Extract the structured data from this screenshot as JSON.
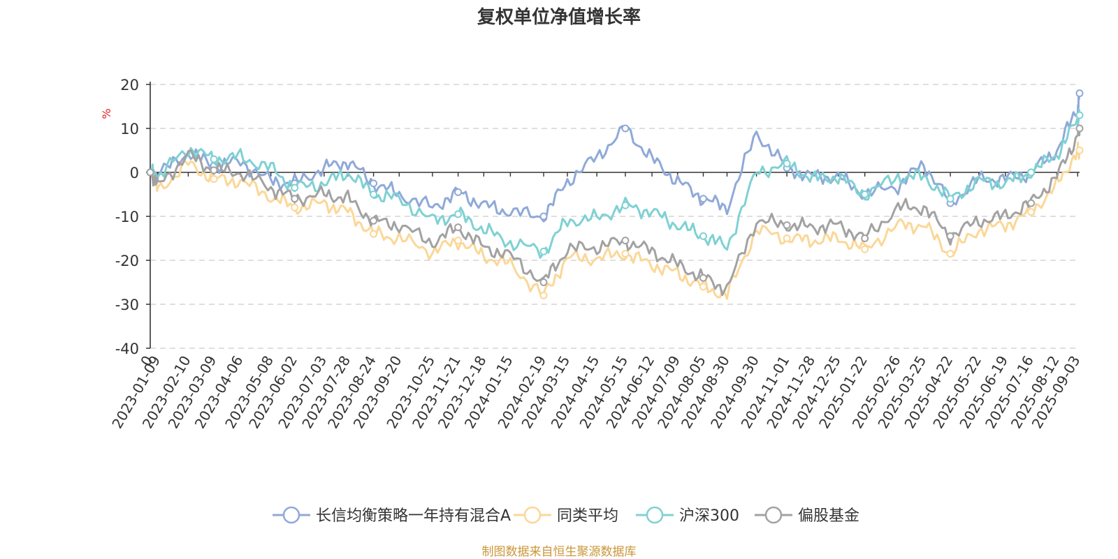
{
  "footer_note": "制图数据来自恒生聚源数据库",
  "chart_data": {
    "type": "line",
    "title": "复权单位净值增长率",
    "ylabel": "%",
    "ylim": [
      -40,
      20
    ],
    "yticks": [
      "20",
      "10",
      "0",
      "-10",
      "-20",
      "-30",
      "-40"
    ],
    "grid": true,
    "legend_position": "bottom",
    "x": [
      "2023-01-01",
      "2023-01-09",
      "2023-02-10",
      "2023-03-09",
      "2023-04-06",
      "2023-05-08",
      "2023-06-02",
      "2023-07-03",
      "2023-07-28",
      "2023-08-24",
      "2023-09-20",
      "2023-10-25",
      "2023-11-21",
      "2023-12-18",
      "2024-01-15",
      "2024-02-19",
      "2024-03-15",
      "2024-04-15",
      "2024-05-15",
      "2024-06-12",
      "2024-07-09",
      "2024-08-05",
      "2024-08-30",
      "2024-09-30",
      "2024-11-01",
      "2024-11-28",
      "2024-12-25",
      "2025-01-22",
      "2025-02-26",
      "2025-03-25",
      "2025-04-22",
      "2025-05-22",
      "2025-06-19",
      "2025-07-16",
      "2025-08-12",
      "2025-09-03",
      "2025-09-05"
    ],
    "x_tick_labels": [
      "0",
      "2023-01-09",
      "2023-02-10",
      "2023-03-09",
      "2023-04-06",
      "2023-05-08",
      "2023-06-02",
      "2023-07-03",
      "2023-07-28",
      "2023-08-24",
      "2023-09-20",
      "2023-10-25",
      "2023-11-21",
      "2023-12-18",
      "2024-01-15",
      "2024-02-19",
      "2024-03-15",
      "2024-04-15",
      "2024-05-15",
      "2024-06-12",
      "2024-07-09",
      "2024-08-05",
      "2024-08-30",
      "2024-09-30",
      "2024-11-01",
      "2024-11-28",
      "2024-12-25",
      "2025-01-22",
      "2025-02-26",
      "2025-03-25",
      "2025-04-22",
      "2025-05-22",
      "2025-06-19",
      "2025-07-16",
      "2025-08-12",
      "2025-09-03"
    ],
    "series": [
      {
        "name": "长信均衡策略一年持有混合A",
        "color": "#8fa9d8",
        "values": [
          0,
          -0.5,
          4.5,
          1.5,
          2.5,
          -2,
          -2.5,
          1,
          2.5,
          -2.5,
          -5,
          -8,
          -4.5,
          -7.5,
          -9,
          -10,
          -2,
          3.5,
          10,
          3,
          -2,
          -6,
          -8,
          9,
          1,
          -1,
          -1,
          -5,
          -3,
          2,
          -7,
          -1.5,
          -1.5,
          0,
          5,
          14.5,
          18
        ]
      },
      {
        "name": "同类平均",
        "color": "#fbd798",
        "values": [
          0,
          -4,
          2,
          -1.5,
          -2,
          -5.5,
          -8,
          -7,
          -9,
          -14,
          -15,
          -18,
          -15.5,
          -19,
          -21,
          -28,
          -19.5,
          -19.5,
          -18.5,
          -21,
          -23,
          -26,
          -28,
          -13,
          -15,
          -15.5,
          -15,
          -17.5,
          -12,
          -12,
          -18.5,
          -13,
          -12,
          -9,
          -3,
          5,
          5
        ]
      },
      {
        "name": "沪深300",
        "color": "#7fd1d3",
        "values": [
          0,
          -1,
          5.5,
          3,
          3.5,
          1,
          -3.5,
          -2.5,
          0,
          -5,
          -6,
          -11,
          -9.5,
          -13,
          -16,
          -18,
          -11,
          -10.5,
          -7.5,
          -9,
          -12,
          -14.5,
          -17,
          0,
          2,
          -1.5,
          -1,
          -5,
          -1,
          -1,
          -6,
          -2,
          -2.5,
          0,
          4,
          12,
          13
        ]
      },
      {
        "name": "偏股基金",
        "color": "#a2a2a2",
        "values": [
          0,
          -3,
          4,
          0.5,
          0,
          -3.5,
          -6,
          -5,
          -6,
          -11,
          -12,
          -16,
          -12.5,
          -17,
          -19,
          -25,
          -17.5,
          -17,
          -15.5,
          -18,
          -21,
          -24,
          -26.5,
          -11,
          -12,
          -12.5,
          -12,
          -15,
          -8,
          -8,
          -14.5,
          -11,
          -10,
          -7,
          -1,
          8.5,
          10
        ]
      }
    ]
  }
}
